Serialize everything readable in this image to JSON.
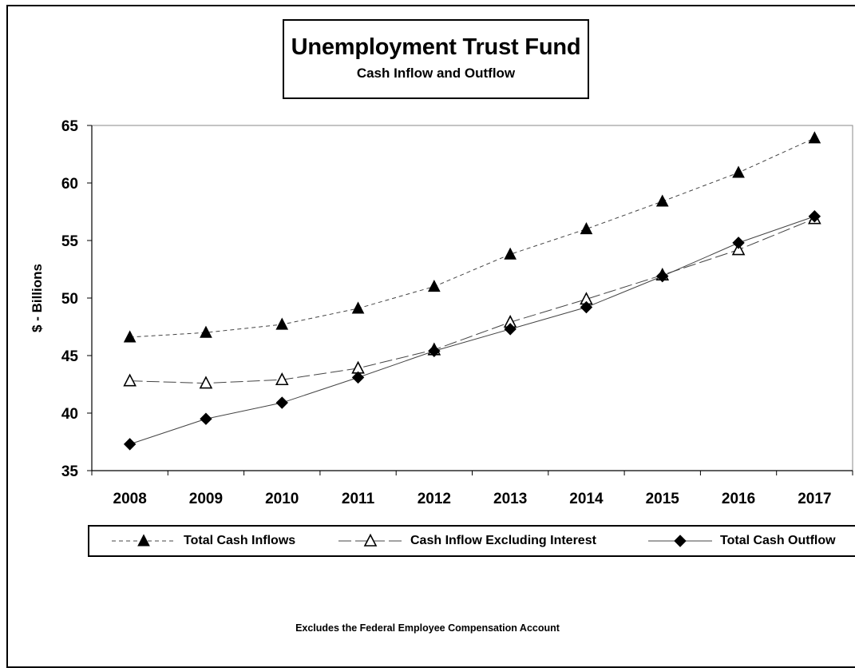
{
  "title": "Unemployment Trust Fund",
  "subtitle": "Cash Inflow and Outflow",
  "footnote": "Excludes the Federal Employee Compensation Account",
  "chart_data": {
    "type": "line",
    "title": "Unemployment Trust Fund",
    "subtitle": "Cash Inflow and Outflow",
    "xlabel": "",
    "ylabel": "$ - Billions",
    "x": [
      "2008",
      "2009",
      "2010",
      "2011",
      "2012",
      "2013",
      "2014",
      "2015",
      "2016",
      "2017"
    ],
    "ylim": [
      35,
      65
    ],
    "yticks": [
      35,
      40,
      45,
      50,
      55,
      60,
      65
    ],
    "grid": false,
    "legend_position": "bottom",
    "series": [
      {
        "name": "Total Cash Inflows",
        "marker": "filled-triangle",
        "line": "dashed",
        "color": "#000000",
        "values": [
          46.6,
          47.0,
          47.7,
          49.1,
          51.0,
          53.8,
          56.0,
          58.4,
          60.9,
          63.9
        ]
      },
      {
        "name": "Cash Inflow Excluding Interest",
        "marker": "open-triangle",
        "line": "long-dashed",
        "color": "#000000",
        "values": [
          42.8,
          42.6,
          42.9,
          43.9,
          45.5,
          47.9,
          49.9,
          52.0,
          54.2,
          56.9
        ]
      },
      {
        "name": "Total Cash Outflow",
        "marker": "diamond",
        "line": "solid",
        "color": "#000000",
        "values": [
          37.3,
          39.5,
          40.9,
          43.1,
          45.4,
          47.3,
          49.2,
          51.9,
          54.8,
          57.1
        ]
      }
    ]
  }
}
